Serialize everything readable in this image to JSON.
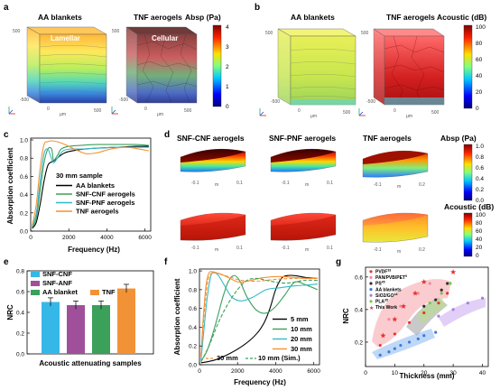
{
  "panel_labels": [
    "a",
    "b",
    "c",
    "d",
    "e",
    "f",
    "g"
  ],
  "a": {
    "left_title": "AA blankets",
    "right_title": "TNF aerogels",
    "left_tag": "Lamellar",
    "right_tag": "Cellular",
    "colorbar_title": "Absp (Pa)",
    "colorbar_ticks": [
      "4",
      "3",
      "2",
      "1",
      "0"
    ],
    "axis_unit": "μm",
    "cube_ticks_x": [
      "-500",
      "0",
      "500"
    ],
    "cube_ticks_y": [
      "0",
      "500"
    ]
  },
  "b": {
    "left_title": "AA blankets",
    "right_title": "TNF aerogels",
    "colorbar_title": "Acoustic (dB)",
    "colorbar_ticks": [
      "100",
      "80",
      "60",
      "40",
      "20",
      "0"
    ],
    "axis_unit": "μm",
    "cube_ticks_x": [
      "-500",
      "0",
      "500"
    ],
    "cube_ticks_y": [
      "0",
      "500"
    ]
  },
  "d": {
    "titles": [
      "SNF-CNF aerogels",
      "SNF-PNF aerogels",
      "TNF aerogels"
    ],
    "colorbar1_title": "Absp (Pa)",
    "colorbar1_ticks": [
      "1.0",
      "0.8",
      "0.6",
      "0.4",
      "0.2",
      "0.0"
    ],
    "colorbar2_title": "Acoustic (dB)",
    "colorbar2_ticks": [
      "100",
      "80",
      "60",
      "40",
      "20",
      "0"
    ],
    "axis_unit": "m",
    "axis_ticks": [
      "-0.1",
      "0",
      "0.1",
      "0.2"
    ]
  },
  "chart_data": [
    {
      "id": "c",
      "type": "line",
      "xlabel": "Frequency (Hz)",
      "ylabel": "Absorption coefficient",
      "xlim": [
        0,
        6300
      ],
      "ylim": [
        0.0,
        1.02
      ],
      "xticks": [
        "0",
        "2000",
        "4000",
        "6000"
      ],
      "yticks": [
        "0.0",
        "0.2",
        "0.4",
        "0.6",
        "0.8",
        "1.0"
      ],
      "annotation": "30 mm sample",
      "legend_position": "center",
      "series": [
        {
          "name": "AA blankets",
          "color": "#000000",
          "x": [
            80,
            300,
            500,
            700,
            900,
            1100,
            1300,
            1500,
            1800,
            2200,
            2800,
            3500,
            4500,
            5500,
            6200
          ],
          "y": [
            0.03,
            0.1,
            0.3,
            0.55,
            0.72,
            0.76,
            0.78,
            0.82,
            0.86,
            0.88,
            0.9,
            0.91,
            0.92,
            0.93,
            0.93
          ]
        },
        {
          "name": "SNF-CNF aerogels",
          "color": "#3aa05a",
          "x": [
            80,
            300,
            500,
            700,
            900,
            1100,
            1200,
            1400,
            1600,
            2000,
            2600,
            3500,
            4500,
            5500,
            6200
          ],
          "y": [
            0.04,
            0.15,
            0.45,
            0.75,
            0.9,
            0.9,
            0.78,
            0.83,
            0.9,
            0.93,
            0.94,
            0.95,
            0.95,
            0.95,
            0.94
          ]
        },
        {
          "name": "SNF-PNF aerogels",
          "color": "#35b8c8",
          "x": [
            80,
            300,
            500,
            700,
            900,
            1050,
            1200,
            1400,
            1700,
            2100,
            2700,
            3500,
            4500,
            5500,
            6200
          ],
          "y": [
            0.05,
            0.2,
            0.55,
            0.85,
            0.9,
            0.82,
            0.75,
            0.8,
            0.88,
            0.9,
            0.9,
            0.91,
            0.92,
            0.92,
            0.92
          ]
        },
        {
          "name": "TNF aerogels",
          "color": "#f29236",
          "x": [
            80,
            300,
            500,
            700,
            900,
            1100,
            1400,
            1800,
            2300,
            2900,
            3500,
            4200,
            5000,
            5700,
            6200
          ],
          "y": [
            0.06,
            0.3,
            0.7,
            0.95,
            0.98,
            0.99,
            0.98,
            0.95,
            0.9,
            0.85,
            0.86,
            0.9,
            0.92,
            0.9,
            0.88
          ]
        }
      ]
    },
    {
      "id": "e",
      "type": "bar",
      "xlabel": "Acoustic attenuating samples",
      "ylabel": "NRC",
      "ylim": [
        0.0,
        0.8
      ],
      "yticks": [
        "0.0",
        "0.2",
        "0.4",
        "0.6",
        "0.8"
      ],
      "categories": [
        "SNF-CNF",
        "SNF-ANF",
        "AA blanket",
        "TNF"
      ],
      "values": [
        0.5,
        0.47,
        0.47,
        0.63
      ],
      "errors": [
        0.04,
        0.04,
        0.04,
        0.04
      ],
      "colors": [
        "#35b8e8",
        "#a0509a",
        "#3aa05a",
        "#f29236"
      ],
      "legend_position": "top"
    },
    {
      "id": "f",
      "type": "line",
      "xlabel": "Frequency (Hz)",
      "ylabel": "Absorption coefficient",
      "xlim": [
        0,
        6300
      ],
      "ylim": [
        0.0,
        1.02
      ],
      "xticks": [
        "0",
        "2000",
        "4000",
        "6000"
      ],
      "yticks": [
        "0.0",
        "0.2",
        "0.4",
        "0.6",
        "0.8",
        "1.0"
      ],
      "annotation_left": "30 mm",
      "annotation_right": "10 mm (Sim.)",
      "legend_position": "bottom-right",
      "series": [
        {
          "name": "5 mm",
          "color": "#000000",
          "dashed": false,
          "x": [
            80,
            800,
            1600,
            2400,
            3000,
            3400,
            3700,
            4000,
            4300,
            4600,
            5000,
            5600,
            6200
          ],
          "y": [
            0.02,
            0.05,
            0.12,
            0.22,
            0.33,
            0.45,
            0.6,
            0.8,
            0.92,
            0.95,
            0.95,
            0.93,
            0.92
          ]
        },
        {
          "name": "10 mm",
          "color": "#3aa05a",
          "dashed": false,
          "x": [
            80,
            400,
            800,
            1200,
            1500,
            1800,
            2100,
            2500,
            3000,
            3500,
            4000,
            4500,
            5000,
            5600,
            6200
          ],
          "y": [
            0.04,
            0.15,
            0.4,
            0.7,
            0.88,
            0.95,
            0.9,
            0.72,
            0.58,
            0.55,
            0.62,
            0.75,
            0.88,
            0.85,
            0.8
          ]
        },
        {
          "name": "20 mm",
          "color": "#35b8c8",
          "dashed": false,
          "x": [
            80,
            200,
            400,
            600,
            800,
            1000,
            1300,
            1700,
            2200,
            2800,
            3500,
            4200,
            5000,
            5700,
            6200
          ],
          "y": [
            0.05,
            0.3,
            0.7,
            0.95,
            0.98,
            0.95,
            0.85,
            0.72,
            0.68,
            0.72,
            0.8,
            0.82,
            0.84,
            0.85,
            0.86
          ]
        },
        {
          "name": "30 mm",
          "color": "#f29236",
          "dashed": false,
          "x": [
            80,
            200,
            350,
            500,
            700,
            900,
            1200,
            1600,
            2100,
            2700,
            3400,
            4200,
            5000,
            5700,
            6200
          ],
          "y": [
            0.08,
            0.5,
            0.85,
            0.98,
            0.99,
            0.98,
            0.96,
            0.92,
            0.88,
            0.9,
            0.93,
            0.94,
            0.93,
            0.92,
            0.92
          ]
        },
        {
          "name": "30 mm (Sim.)",
          "color": "#f29236",
          "dashed": true,
          "x": [
            80,
            250,
            450,
            700,
            1000,
            1500,
            2200,
            3000,
            4000,
            5000,
            6200
          ],
          "y": [
            0.1,
            0.55,
            0.9,
            0.98,
            0.97,
            0.94,
            0.9,
            0.89,
            0.91,
            0.92,
            0.92
          ]
        },
        {
          "name": "10 mm (Sim.)",
          "color": "#3aa05a",
          "dashed": true,
          "x": [
            80,
            500,
            1000,
            1500,
            2000,
            2500,
            3000,
            3500,
            4000,
            4500,
            5000,
            5500,
            6200
          ],
          "y": [
            0.03,
            0.2,
            0.45,
            0.65,
            0.8,
            0.9,
            0.92,
            0.9,
            0.88,
            0.87,
            0.88,
            0.9,
            0.9
          ]
        }
      ]
    },
    {
      "id": "g",
      "type": "scatter",
      "xlabel": "Thickness (mm)",
      "ylabel": "NRC",
      "xlim": [
        0,
        42
      ],
      "ylim": [
        0.05,
        0.66
      ],
      "xticks": [
        "0",
        "10",
        "20",
        "30",
        "40"
      ],
      "yticks": [
        "0.2",
        "0.4",
        "0.6"
      ],
      "legend_position": "top-left",
      "series": [
        {
          "name": "PVDF",
          "ref": "33",
          "color": "#e8342e",
          "x": [
            5,
            10,
            15,
            20,
            25,
            28
          ],
          "y": [
            0.18,
            0.25,
            0.32,
            0.38,
            0.44,
            0.5
          ]
        },
        {
          "name": "PAN/PVB/PET",
          "ref": "9",
          "color": "#f08aa0",
          "x": [
            8,
            12,
            18,
            22
          ],
          "y": [
            0.34,
            0.42,
            0.5,
            0.56
          ]
        },
        {
          "name": "PS",
          "ref": "45",
          "color": "#303030",
          "x": [
            20,
            24,
            26,
            28
          ],
          "y": [
            0.42,
            0.46,
            0.52,
            0.56
          ]
        },
        {
          "name": "AA blankets",
          "color": "#3d7bd6",
          "x": [
            5,
            8,
            10,
            12,
            15,
            18,
            20,
            24
          ],
          "y": [
            0.12,
            0.14,
            0.16,
            0.18,
            0.2,
            0.22,
            0.24,
            0.26
          ]
        },
        {
          "name": "SiO2/GO",
          "ref": "14",
          "color": "#a77de0",
          "x": [
            25,
            30,
            35,
            40
          ],
          "y": [
            0.36,
            0.4,
            0.44,
            0.47
          ]
        },
        {
          "name": "PLA",
          "ref": "35",
          "color": "#7fc24a",
          "x": [
            22,
            26,
            29
          ],
          "y": [
            0.44,
            0.5,
            0.56
          ]
        },
        {
          "name": "This Work",
          "color": "#e8342e",
          "marker": "star",
          "x": [
            6,
            10,
            13,
            17,
            20,
            30
          ],
          "y": [
            0.24,
            0.34,
            0.42,
            0.5,
            0.57,
            0.63
          ]
        }
      ]
    }
  ]
}
